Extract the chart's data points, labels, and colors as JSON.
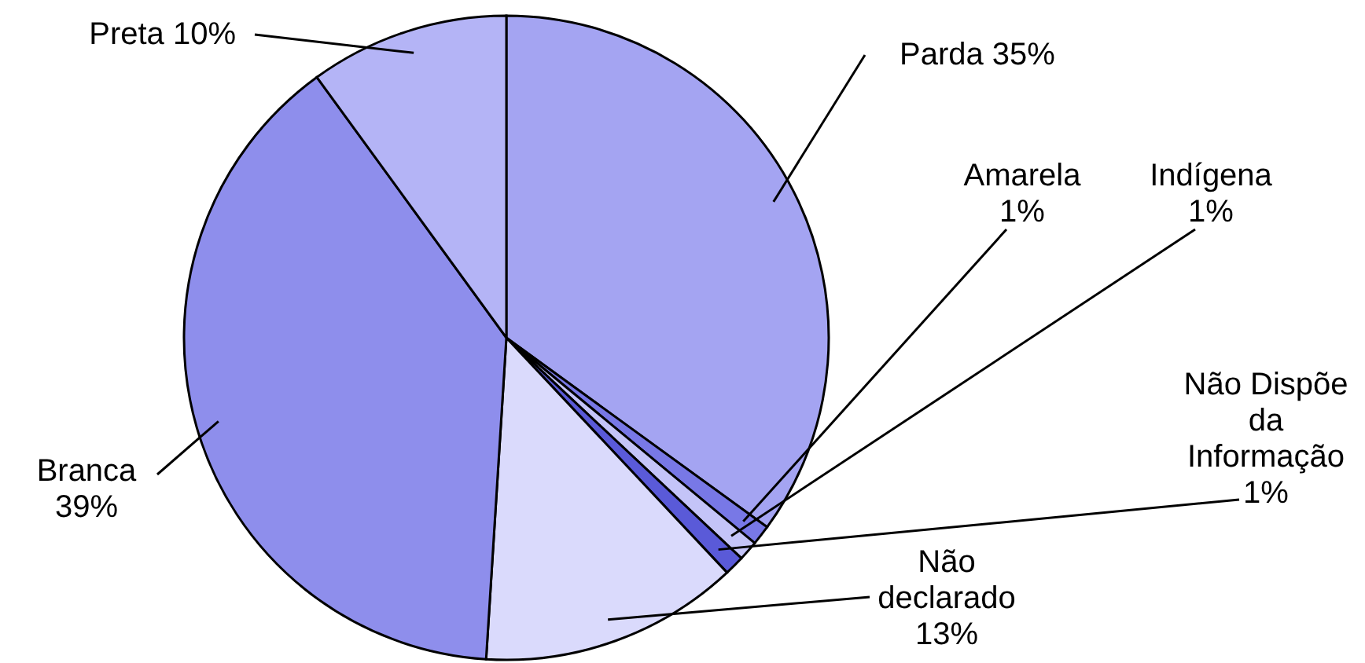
{
  "chart_data": {
    "type": "pie",
    "categories": [
      "Parda",
      "Amarela",
      "Indígena",
      "Não Dispõe da Informação",
      "Não declarado",
      "Branca",
      "Preta"
    ],
    "values": [
      35,
      1,
      1,
      1,
      13,
      39,
      10
    ],
    "colors": [
      "#a4a4f2",
      "#7878e6",
      "#c4c4f8",
      "#5a5ad8",
      "#dadafc",
      "#8e8eec",
      "#b4b4f6"
    ],
    "value_labels": [
      "35%",
      "1%",
      "1%",
      "1%",
      "13%",
      "39%",
      "10%"
    ]
  }
}
